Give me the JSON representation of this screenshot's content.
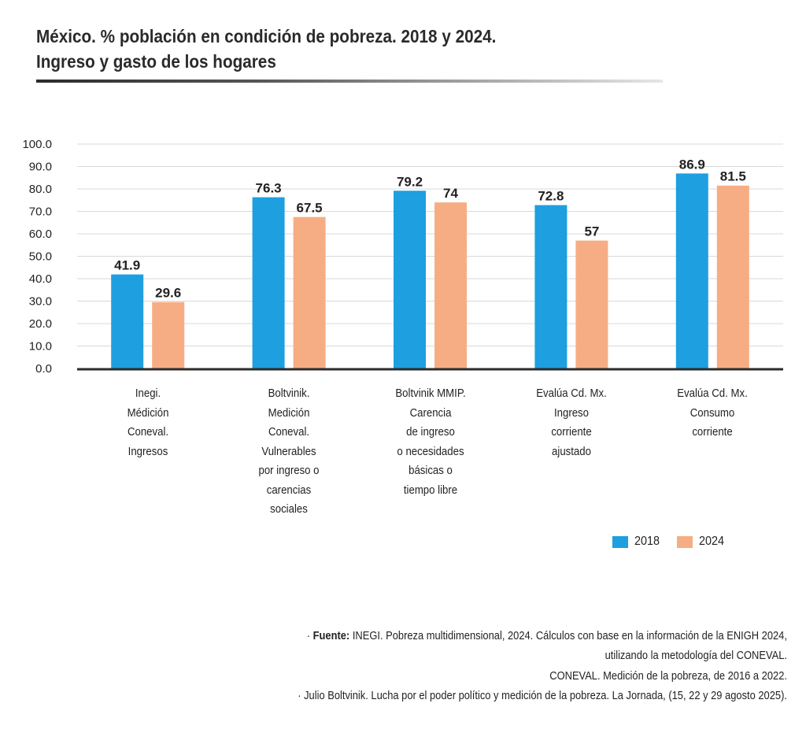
{
  "title_line1": "México. % población en condición de pobreza. 2018 y 2024.",
  "title_line2": "Ingreso y gasto de los hogares",
  "chart_data": {
    "type": "bar",
    "categories": [
      "Inegi.\nMédición\nConeval.\nIngresos",
      "Boltvinik.\nMedición\nConeval.\nVulnerables\npor ingreso o\ncarencias\nsociales",
      "Boltvinik MMIP.\nCarencia\nde ingreso\no necesidades\nbásicas o\ntiempo libre",
      "Evalúa Cd. Mx.\nIngreso\ncorriente\najustado",
      "Evalúa Cd. Mx.\nConsumo\ncorriente"
    ],
    "series": [
      {
        "name": "2018",
        "color": "#1e9fe0",
        "values": [
          41.9,
          76.3,
          79.2,
          72.8,
          86.9
        ],
        "labels": [
          "41.9",
          "76.3",
          "79.2",
          "72.8",
          "86.9"
        ]
      },
      {
        "name": "2024",
        "color": "#f7ad84",
        "values": [
          29.6,
          67.5,
          74,
          57,
          81.5
        ],
        "labels": [
          "29.6",
          "67.5",
          "74",
          "57",
          "81.5"
        ]
      }
    ],
    "ylim": [
      0,
      100
    ],
    "yticks": [
      "0.0",
      "10.0",
      "20.0",
      "30.0",
      "40.0",
      "50.0",
      "60.0",
      "70.0",
      "80.0",
      "90.0",
      "100.0"
    ],
    "grid": true,
    "legend_position": "bottom-right"
  },
  "legend": {
    "item1": "2018",
    "item2": "2024"
  },
  "source": {
    "label": "Fuente:",
    "line1": "INEGI. Pobreza multidimensional, 2024. Cálculos con base en la información de la ENIGH 2024,",
    "line2": "utilizando la metodología del CONEVAL.",
    "line3": "CONEVAL. Medición de la pobreza, de 2016 a 2022.",
    "line4": "Julio Boltvinik. Lucha por el poder político y medición de la pobreza. La Jornada, (15, 22 y 29 agosto 2025)."
  }
}
